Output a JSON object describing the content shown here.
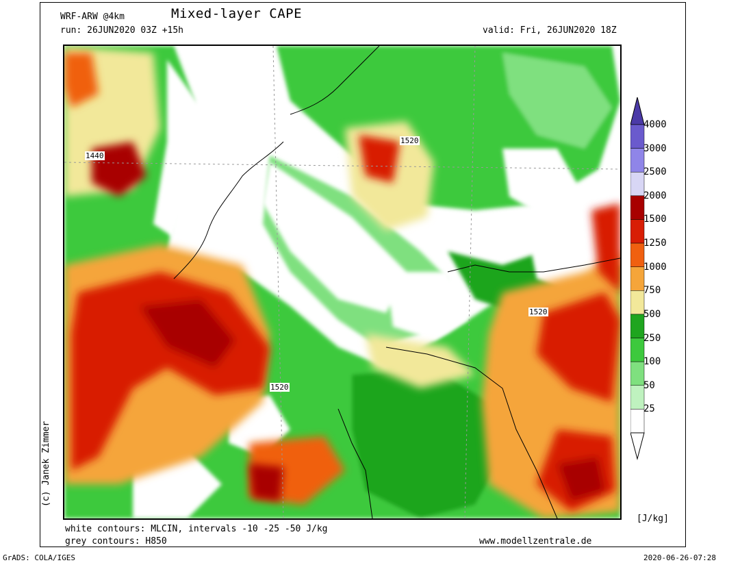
{
  "header": {
    "model": "WRF-ARW @4km",
    "title": "Mixed-layer CAPE",
    "run": "run: 26JUN2020 03Z +15h",
    "valid": "valid: Fri, 26JUN2020 18Z"
  },
  "footer": {
    "white_contours": "white contours: MLCIN, intervals -10 -25 -50 J/kg",
    "grey_contours": "grey contours: H850",
    "website": "www.modellzentrale.de",
    "grads": "GrADS: COLA/IGES",
    "timestamp": "2020-06-26-07:28"
  },
  "credit": "(c) Janek Zimmer",
  "legend": {
    "unit": "[J/kg]",
    "levels": [
      {
        "label": "4000",
        "color": "#6a5acd"
      },
      {
        "label": "3000",
        "color": "#8f85e8"
      },
      {
        "label": "2500",
        "color": "#d8d6f5"
      },
      {
        "label": "2000",
        "color": "#a80000"
      },
      {
        "label": "1500",
        "color": "#d81e05"
      },
      {
        "label": "1250",
        "color": "#f06010"
      },
      {
        "label": "1000",
        "color": "#f5a53a"
      },
      {
        "label": "750",
        "color": "#f2e89a"
      },
      {
        "label": "500",
        "color": "#1fa51f"
      },
      {
        "label": "250",
        "color": "#3dc93d"
      },
      {
        "label": "100",
        "color": "#7fe07f"
      },
      {
        "label": "50",
        "color": "#bff2bf"
      },
      {
        "label": "25",
        "color": "#ffffff"
      }
    ]
  },
  "map": {
    "contour_labels": [
      "1440",
      "1520",
      "1520",
      "1520"
    ]
  }
}
